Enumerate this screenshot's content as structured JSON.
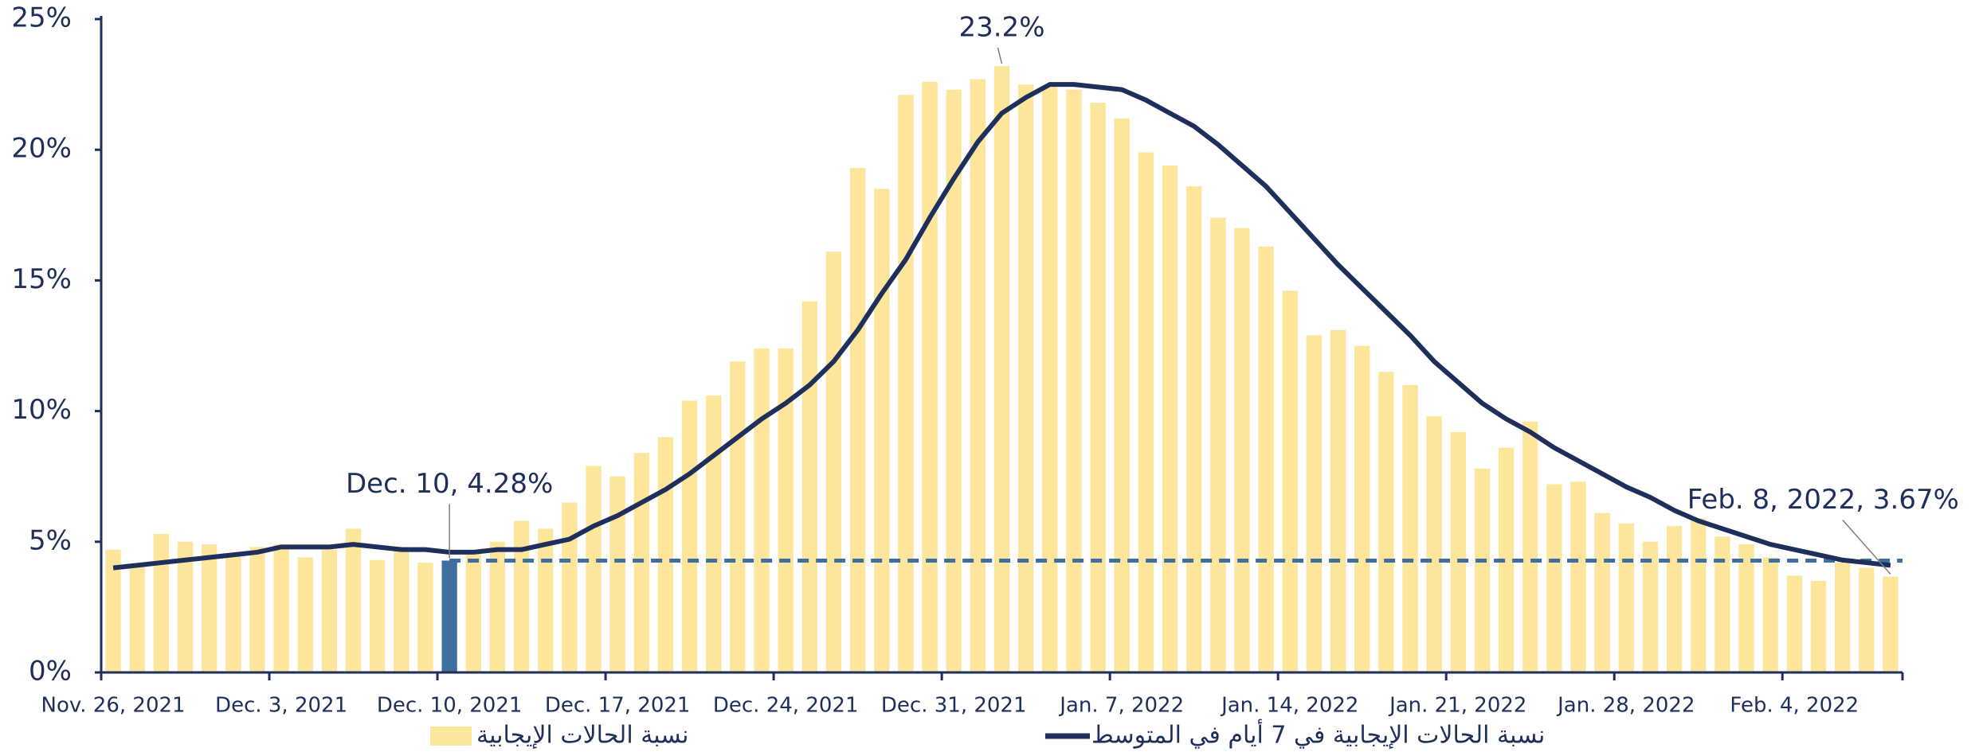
{
  "chart_data": {
    "type": "bar",
    "categories": [
      "Nov. 26, 2021",
      null,
      null,
      null,
      null,
      null,
      null,
      "Dec. 3, 2021",
      null,
      null,
      null,
      null,
      null,
      null,
      "Dec. 10, 2021",
      null,
      null,
      null,
      null,
      null,
      null,
      "Dec. 17, 2021",
      null,
      null,
      null,
      null,
      null,
      null,
      "Dec. 24, 2021",
      null,
      null,
      null,
      null,
      null,
      null,
      "Dec. 31, 2021",
      null,
      null,
      null,
      null,
      null,
      null,
      "Jan. 7, 2022",
      null,
      null,
      null,
      null,
      null,
      null,
      "Jan. 14, 2022",
      null,
      null,
      null,
      null,
      null,
      null,
      "Jan. 21, 2022",
      null,
      null,
      null,
      null,
      null,
      null,
      "Jan. 28, 2022",
      null,
      null,
      null,
      null,
      null,
      null,
      "Feb. 4, 2022",
      null,
      null,
      null,
      null
    ],
    "series": [
      {
        "name": "نسبة الحالات الإيجابية",
        "type": "bar",
        "color": "#fde59b",
        "highlight_color": "#3f6f9f",
        "values": [
          4.7,
          4.1,
          5.3,
          5.0,
          4.9,
          4.5,
          4.8,
          4.9,
          4.4,
          4.7,
          5.5,
          4.3,
          4.8,
          4.2,
          4.28,
          4.6,
          5.0,
          5.8,
          5.5,
          6.5,
          7.9,
          7.5,
          8.4,
          9.0,
          10.4,
          10.6,
          11.9,
          12.4,
          12.4,
          14.2,
          16.1,
          19.3,
          18.5,
          22.1,
          22.6,
          22.3,
          22.7,
          23.2,
          22.5,
          22.4,
          22.3,
          21.8,
          21.2,
          19.9,
          19.4,
          18.6,
          17.4,
          17.0,
          16.3,
          14.6,
          12.9,
          13.1,
          12.5,
          11.5,
          11.0,
          9.8,
          9.2,
          7.8,
          8.6,
          9.6,
          7.2,
          7.3,
          6.1,
          5.7,
          5.0,
          5.6,
          5.9,
          5.2,
          4.9,
          4.4,
          3.7,
          3.5,
          4.2,
          4.0,
          3.67
        ],
        "value_labels": [
          null,
          null,
          null,
          null,
          null,
          null,
          null,
          null,
          null,
          null,
          null,
          null,
          null,
          null,
          "Dec. 10, 4.28%",
          null,
          null,
          null,
          null,
          null,
          null,
          null,
          null,
          null,
          null,
          null,
          null,
          null,
          null,
          null,
          null,
          null,
          null,
          null,
          null,
          null,
          null,
          "23.2%",
          null,
          null,
          null,
          null,
          null,
          null,
          null,
          null,
          null,
          null,
          null,
          null,
          null,
          null,
          null,
          null,
          null,
          null,
          null,
          null,
          null,
          null,
          null,
          null,
          null,
          null,
          null,
          null,
          null,
          null,
          null,
          null,
          null,
          null,
          null,
          null,
          "Feb. 8, 2022, 3.67%"
        ]
      },
      {
        "name": "نسبة الحالات الإيجابية في 7 أيام في المتوسط",
        "type": "line",
        "color": "#1f2f5c",
        "values": [
          4.0,
          4.1,
          4.2,
          4.3,
          4.4,
          4.5,
          4.6,
          4.8,
          4.8,
          4.8,
          4.9,
          4.8,
          4.7,
          4.7,
          4.6,
          4.6,
          4.7,
          4.7,
          4.9,
          5.1,
          5.6,
          6.0,
          6.5,
          7.0,
          7.6,
          8.3,
          9.0,
          9.7,
          10.3,
          11.0,
          11.9,
          13.1,
          14.5,
          15.8,
          17.4,
          18.9,
          20.3,
          21.4,
          22.0,
          22.5,
          22.5,
          22.4,
          22.3,
          21.9,
          21.4,
          20.9,
          20.2,
          19.4,
          18.6,
          17.6,
          16.6,
          15.6,
          14.7,
          13.8,
          12.9,
          11.9,
          11.1,
          10.3,
          9.7,
          9.2,
          8.6,
          8.1,
          7.6,
          7.1,
          6.7,
          6.2,
          5.8,
          5.5,
          5.2,
          4.9,
          4.7,
          4.5,
          4.3,
          4.2,
          4.1
        ]
      }
    ],
    "ylim": [
      0,
      25
    ],
    "yticks": [
      {
        "value": 0,
        "label": "0%"
      },
      {
        "value": 5,
        "label": "5%"
      },
      {
        "value": 10,
        "label": "10%"
      },
      {
        "value": 15,
        "label": "15%"
      },
      {
        "value": 20,
        "label": "20%"
      },
      {
        "value": 25,
        "label": "25%"
      }
    ],
    "grid": false,
    "legend": "bottom"
  }
}
